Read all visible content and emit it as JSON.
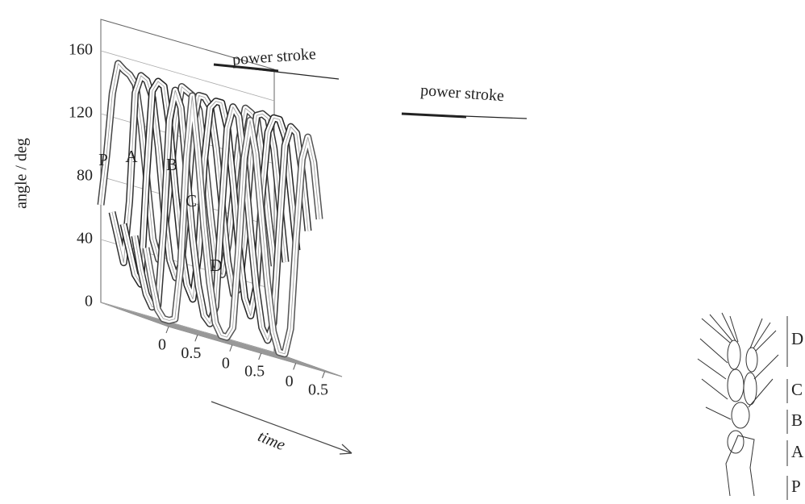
{
  "chart_data": {
    "type": "ribbon3d",
    "ylabel": "angle / deg",
    "xlabel": "time",
    "x": [
      0,
      0.1,
      0.2,
      0.3,
      0.4,
      0.5,
      0.6,
      0.7,
      0.8,
      0.9,
      1.0,
      1.1,
      1.2,
      1.3,
      1.4,
      1.5,
      1.6,
      1.7,
      1.8,
      1.9,
      2.0,
      2.1,
      2.2,
      2.3,
      2.4,
      2.5,
      2.6,
      2.7,
      2.8,
      2.9,
      3.0
    ],
    "xlim": [
      0,
      3.0
    ],
    "xticks": [
      {
        "value": 0,
        "label": "0"
      },
      {
        "value": 0.5,
        "label": "0.5"
      },
      {
        "value": 1.1,
        "label": "0"
      },
      {
        "value": 1.6,
        "label": "0.5"
      },
      {
        "value": 2.2,
        "label": "0"
      },
      {
        "value": 2.7,
        "label": "0.5"
      }
    ],
    "ylim": [
      0,
      180
    ],
    "yticks": [
      0,
      40,
      80,
      120,
      160
    ],
    "grid": true,
    "series": [
      {
        "name": "P",
        "color": "#444444",
        "values": [
          62,
          95,
          135,
          155,
          152,
          150,
          145,
          120,
          85,
          50,
          38,
          55,
          90,
          130,
          152,
          150,
          148,
          140,
          110,
          75,
          45,
          40,
          60,
          95,
          130,
          150,
          148,
          145,
          120,
          85,
          55
        ]
      },
      {
        "name": "A",
        "color": "#333333",
        "values": [
          60,
          45,
          30,
          70,
          140,
          152,
          150,
          140,
          110,
          70,
          40,
          30,
          40,
          80,
          130,
          150,
          150,
          145,
          120,
          85,
          50,
          30,
          35,
          70,
          120,
          148,
          150,
          148,
          130,
          95,
          60
        ]
      },
      {
        "name": "B",
        "color": "#222222",
        "values": [
          55,
          40,
          25,
          20,
          90,
          145,
          152,
          150,
          125,
          85,
          50,
          28,
          20,
          50,
          110,
          145,
          150,
          150,
          135,
          100,
          60,
          30,
          20,
          40,
          100,
          140,
          150,
          150,
          140,
          105,
          70
        ]
      },
      {
        "name": "C",
        "color": "#333333",
        "values": [
          50,
          30,
          15,
          8,
          10,
          60,
          130,
          150,
          140,
          100,
          60,
          30,
          12,
          8,
          20,
          80,
          135,
          150,
          145,
          115,
          75,
          40,
          15,
          8,
          20,
          80,
          135,
          148,
          145,
          120,
          85
        ]
      },
      {
        "name": "D",
        "color": "#555555",
        "values": [
          45,
          25,
          8,
          3,
          3,
          5,
          40,
          110,
          150,
          115,
          70,
          35,
          10,
          3,
          3,
          10,
          60,
          120,
          145,
          125,
          85,
          45,
          15,
          3,
          3,
          20,
          80,
          130,
          145,
          130,
          95
        ]
      }
    ],
    "annotations": [
      "power stroke",
      "power stroke"
    ]
  },
  "figure_inset": {
    "segment_labels": [
      "D",
      "C",
      "B",
      "A",
      "P"
    ]
  }
}
